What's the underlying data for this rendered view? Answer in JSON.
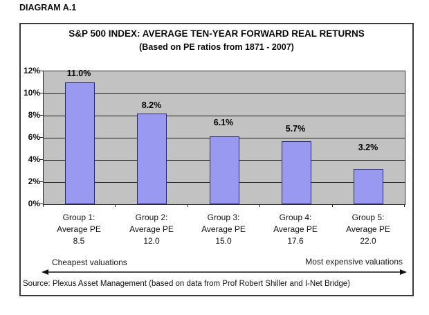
{
  "page": {
    "diagram_label": "DIAGRAM A.1"
  },
  "chart_data": {
    "type": "bar",
    "title": "S&P 500 INDEX: AVERAGE TEN-YEAR FORWARD REAL RETURNS",
    "subtitle": "(Based on PE ratios from 1871 - 2007)",
    "categories": [
      "Group 1: Average PE 8.5",
      "Group 2: Average PE 12.0",
      "Group 3: Average PE 15.0",
      "Group 4: Average PE 17.6",
      "Group 5: Average PE 22.0"
    ],
    "groups": [
      {
        "cat_line1": "Group 1:",
        "cat_line2": "Average PE",
        "cat_line3": "8.5",
        "value": 11.0,
        "label": "11.0%"
      },
      {
        "cat_line1": "Group 2:",
        "cat_line2": "Average PE",
        "cat_line3": "12.0",
        "value": 8.2,
        "label": "8.2%"
      },
      {
        "cat_line1": "Group 3:",
        "cat_line2": "Average PE",
        "cat_line3": "15.0",
        "value": 6.1,
        "label": "6.1%"
      },
      {
        "cat_line1": "Group 4:",
        "cat_line2": "Average PE",
        "cat_line3": "17.6",
        "value": 5.7,
        "label": "5.7%"
      },
      {
        "cat_line1": "Group 5:",
        "cat_line2": "Average PE",
        "cat_line3": "22.0",
        "value": 3.2,
        "label": "3.2%"
      }
    ],
    "y_axis": {
      "tick_labels": [
        "12%",
        "10%",
        "8%",
        "6%",
        "4%",
        "2%",
        "0%"
      ],
      "min": 0,
      "max": 12,
      "step": 2,
      "unit": "%"
    },
    "grid": true,
    "legend": false,
    "colors": {
      "plot_bg": "#c2c2c2",
      "bar_fill": "#9a99f2",
      "bar_border": "#29296b"
    }
  },
  "annotations": {
    "left_note": "Cheapest valuations",
    "right_note": "Most expensive valuations",
    "source": "Source: Plexus Asset Management (based on data from Prof Robert Shiller and I-Net Bridge)"
  }
}
